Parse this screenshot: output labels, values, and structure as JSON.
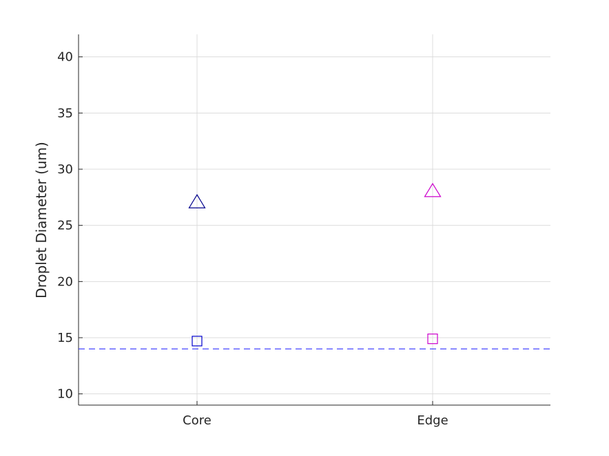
{
  "chart_data": {
    "type": "scatter",
    "title": "",
    "xlabel": "",
    "ylabel": "Droplet Diameter (um)",
    "categories": [
      "Core",
      "Edge"
    ],
    "ylim": [
      9,
      42
    ],
    "yticks": [
      10,
      15,
      20,
      25,
      30,
      35,
      40
    ],
    "grid": true,
    "legend": "none",
    "series": [
      {
        "marker": "triangle",
        "values": [
          27.0,
          28.0
        ],
        "colors": [
          "#00008b",
          "#cc00cc"
        ]
      },
      {
        "marker": "square",
        "values": [
          14.7,
          14.9
        ],
        "colors": [
          "#0000cd",
          "#cc00cc"
        ]
      }
    ],
    "reference_line": {
      "y": 14.0,
      "style": "dashed",
      "color": "#3333ff"
    }
  }
}
